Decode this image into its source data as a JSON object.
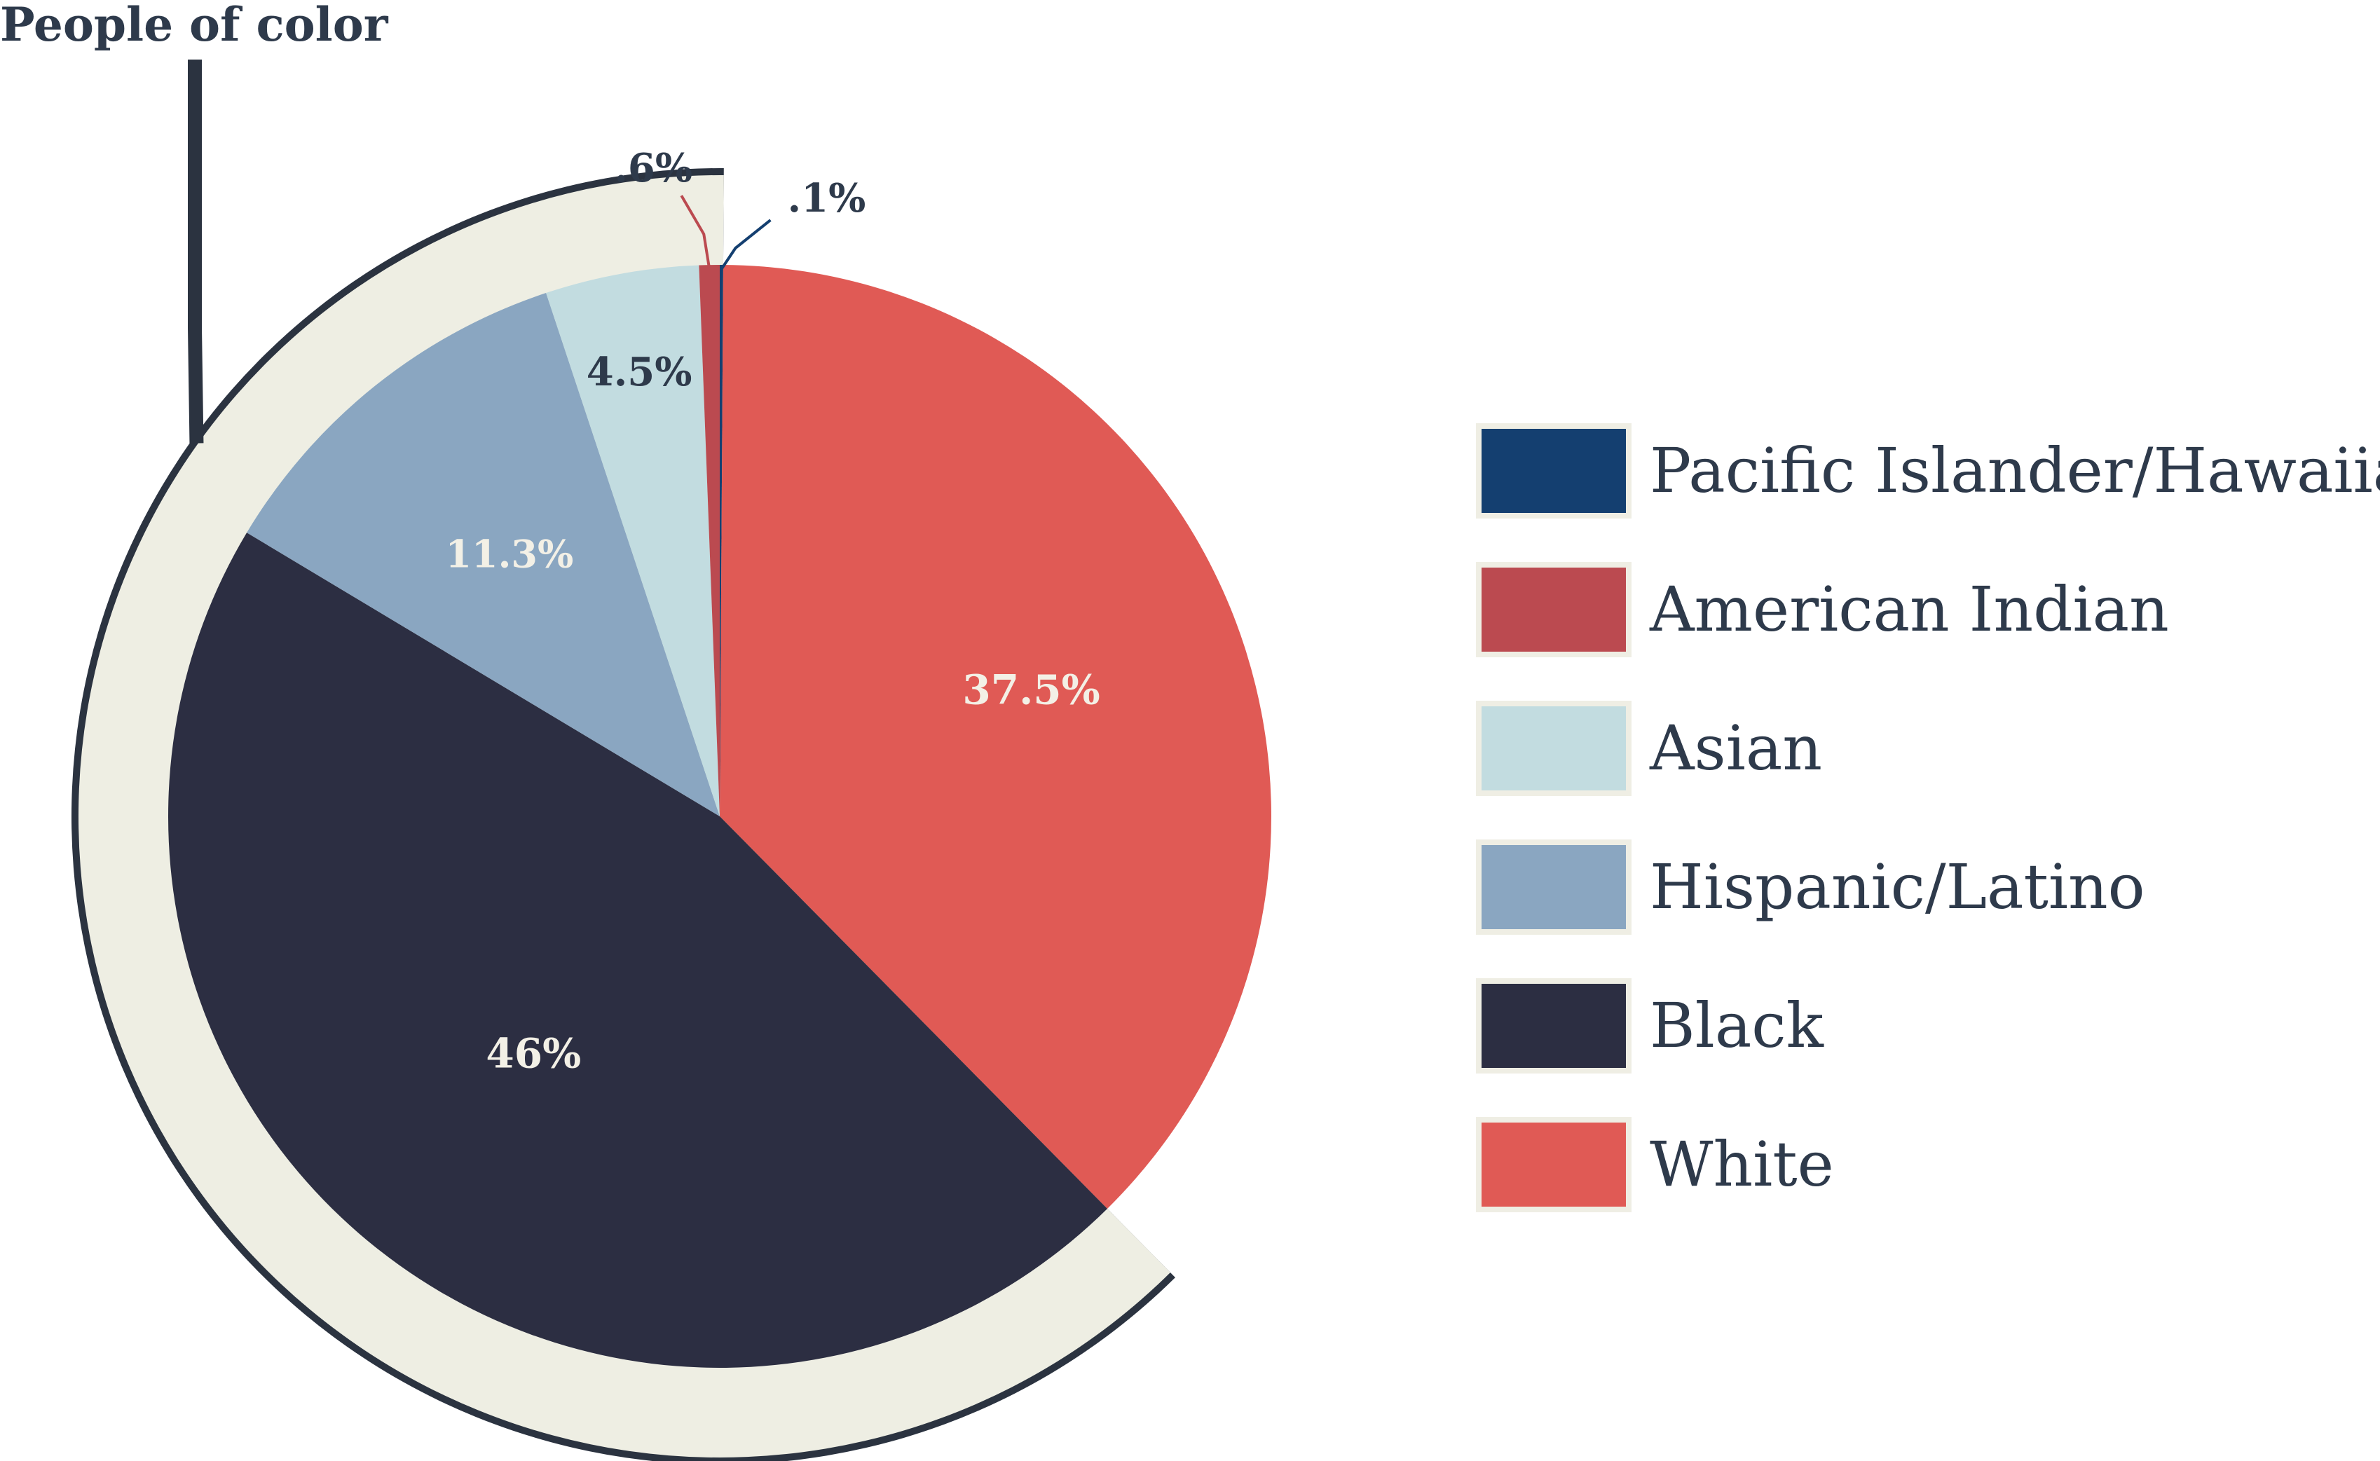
{
  "chart_data": {
    "type": "pie",
    "title": "",
    "group_label": "People of color",
    "slices": [
      {
        "name": "Pacific Islander/Hawaiian",
        "value": 0.1,
        "label": ".1%",
        "color": "#143f70"
      },
      {
        "name": "White",
        "value": 37.5,
        "label": "37.5%",
        "color": "#e05a55"
      },
      {
        "name": "Black",
        "value": 46,
        "label": "46%",
        "color": "#2c2e42"
      },
      {
        "name": "Hispanic/Latino",
        "value": 11.3,
        "label": "11.3%",
        "color": "#8aa6c1"
      },
      {
        "name": "Asian",
        "value": 4.5,
        "label": "4.5%",
        "color": "#c2dce0"
      },
      {
        "name": "American Indian",
        "value": 0.6,
        "label": ".6%",
        "color": "#bb4a50"
      }
    ],
    "legend": [
      {
        "name": "Pacific Islander/Hawaiian",
        "color": "#143f70"
      },
      {
        "name": "American Indian",
        "color": "#bb4a50"
      },
      {
        "name": "Asian",
        "color": "#c2dce0"
      },
      {
        "name": "Hispanic/Latino",
        "color": "#8aa6c1"
      },
      {
        "name": "Black",
        "color": "#2c2e42"
      },
      {
        "name": "White",
        "color": "#e05a55"
      }
    ],
    "legend_position": "right",
    "group_band_color": "#eeeee3",
    "outline_color": "#2b3340"
  }
}
